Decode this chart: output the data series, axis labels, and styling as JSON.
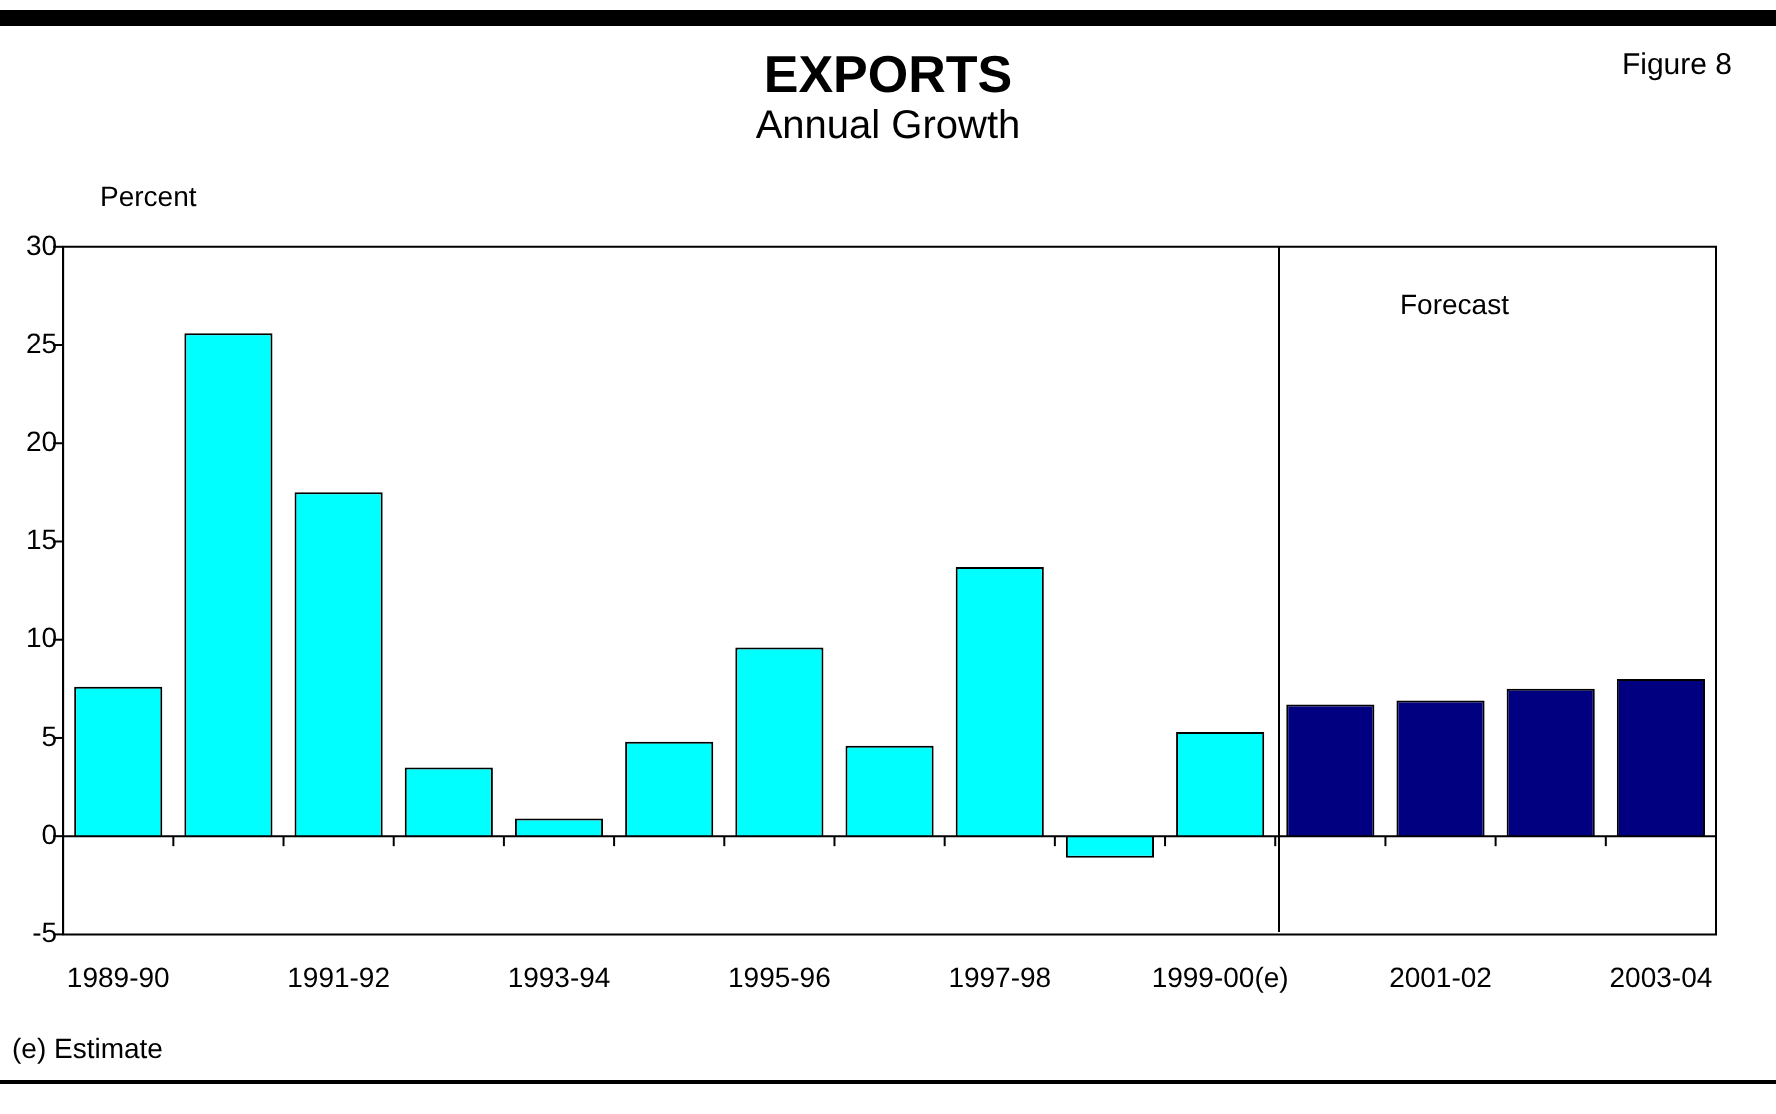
{
  "chart_data": {
    "type": "bar",
    "title": "EXPORTS",
    "subtitle": "Annual Growth",
    "ylabel": "Percent",
    "categories": [
      "1989-90",
      null,
      "1991-92",
      null,
      "1993-94",
      null,
      "1995-96",
      null,
      "1997-98",
      null,
      "1999-00(e)",
      null,
      "2001-02",
      null,
      "2003-04"
    ],
    "values": [
      7.6,
      25.6,
      17.5,
      3.5,
      0.9,
      4.8,
      9.6,
      4.6,
      13.7,
      -1.1,
      5.3,
      6.7,
      6.9,
      7.5,
      8.0
    ],
    "colors": [
      "#00ffff",
      "#00ffff",
      "#00ffff",
      "#00ffff",
      "#00ffff",
      "#00ffff",
      "#00ffff",
      "#00ffff",
      "#00ffff",
      "#00ffff",
      "#00ffff",
      "#000080",
      "#000080",
      "#000080",
      "#000080"
    ],
    "ylim": [
      -5,
      30
    ],
    "yticks": [
      -5,
      0,
      5,
      10,
      15,
      20,
      25,
      30
    ],
    "grid": false,
    "legend": false,
    "ref_lines": [
      {
        "axis": "y",
        "value": 0,
        "color": "#000000"
      }
    ],
    "annotations": [
      "Figure 8",
      "Forecast",
      "(e) Estimate"
    ]
  }
}
